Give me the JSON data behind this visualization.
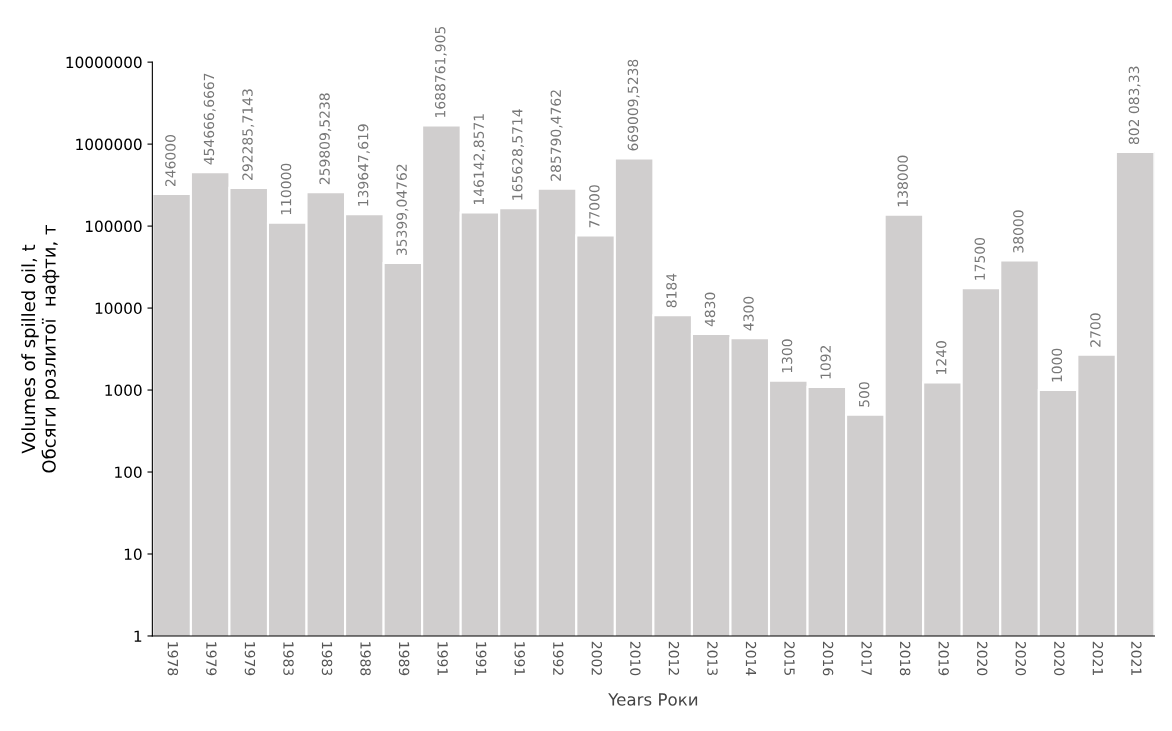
{
  "chart_data": {
    "type": "bar",
    "xlabel": "Years Роки",
    "ylabel": "Volumes of spilled oil, t\nОбсяги розлитої  нафти, т",
    "categories": [
      "1978",
      "1979",
      "1979",
      "1983",
      "1983",
      "1988",
      "1989",
      "1991",
      "1991",
      "1991",
      "1992",
      "2002",
      "2010",
      "2012",
      "2013",
      "2014",
      "2015",
      "2016",
      "2017",
      "2018",
      "2019",
      "2020",
      "2020",
      "2020",
      "2021",
      "2021"
    ],
    "values": [
      246000,
      454666.6667,
      292285.7143,
      110000,
      259809.5238,
      139647.619,
      35399.04762,
      1688761.905,
      146142.8571,
      165628.5714,
      285790.4762,
      77000,
      669009.5238,
      8184,
      4830,
      4300,
      1300,
      1092,
      500,
      138000,
      1240,
      17500,
      38000,
      1000,
      2700,
      802083.33
    ],
    "value_labels": [
      "246000",
      "454666,6667",
      "292285,7143",
      "110000",
      "259809,5238",
      "139647,619",
      "35399,04762",
      "1688761,905",
      "146142,8571",
      "165628,5714",
      "285790,4762",
      "77000",
      "669009,5238",
      "8184",
      "4830",
      "4300",
      "1300",
      "1092",
      "500",
      "138000",
      "1240",
      "17500",
      "38000",
      "1000",
      "2700",
      "802 083,33"
    ],
    "color": "#d0cece",
    "log": true,
    "ylim": [
      1,
      10000000
    ],
    "yticks": [
      1,
      10,
      100,
      1000,
      10000,
      100000,
      1000000,
      10000000
    ],
    "grid": false,
    "legend": false
  }
}
